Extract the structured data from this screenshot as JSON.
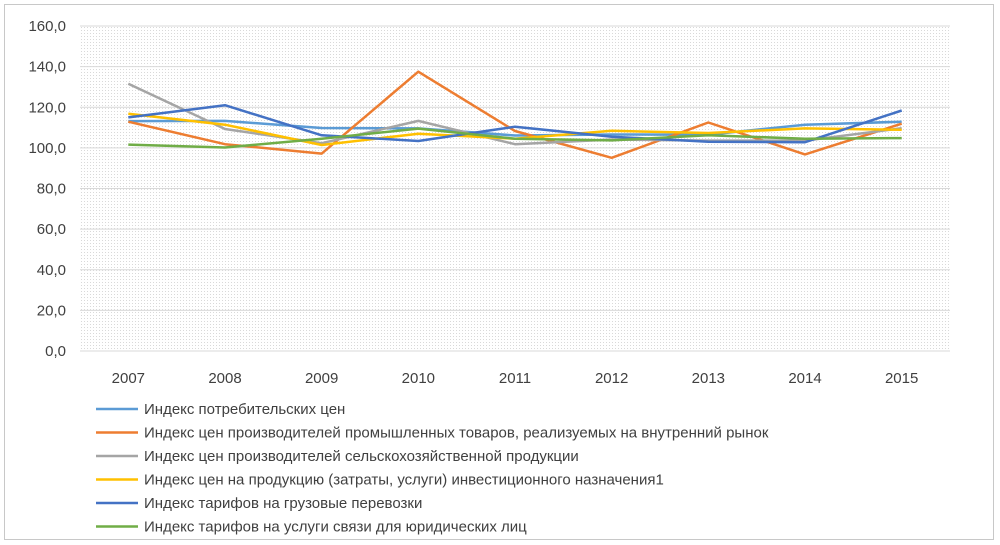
{
  "chart_data": {
    "type": "line",
    "title": "",
    "xlabel": "",
    "ylabel": "",
    "ylim": [
      0,
      160
    ],
    "y_ticks": [
      "0,0",
      "20,0",
      "40,0",
      "60,0",
      "80,0",
      "100,0",
      "120,0",
      "140,0",
      "160,0"
    ],
    "y_tick_values": [
      0,
      20,
      40,
      60,
      80,
      100,
      120,
      140,
      160
    ],
    "categories": [
      "2007",
      "2008",
      "2009",
      "2010",
      "2011",
      "2012",
      "2013",
      "2014",
      "2015"
    ],
    "grid": true,
    "legend_position": "bottom",
    "series": [
      {
        "name": "Индекс потребительских цен",
        "color": "#5b9bd5",
        "values": [
          113.2,
          113.3,
          109.8,
          109.6,
          106.1,
          106.6,
          106.5,
          111.4,
          112.9
        ]
      },
      {
        "name": "Индекс цен производителей промышленных товаров, реализуемых на внутренний рынок",
        "color": "#ed7d31",
        "values": [
          112.9,
          101.8,
          97.2,
          137.5,
          108.3,
          95.1,
          112.5,
          96.8,
          111.9
        ]
      },
      {
        "name": "Индекс цен производителей сельскохозяйственной продукции",
        "color": "#a5a5a5",
        "values": [
          131.6,
          109.3,
          102.3,
          113.3,
          101.8,
          104.1,
          103.6,
          103.6,
          109.7
        ]
      },
      {
        "name": "Индекс цен на продукцию (затраты, услуги) инвестиционного назначения1",
        "color": "#ffc000",
        "values": [
          116.8,
          111.4,
          101.4,
          107.0,
          104.5,
          108.4,
          107.3,
          109.6,
          108.9
        ]
      },
      {
        "name": "Индекс тарифов на грузовые перевозки",
        "color": "#4472c4",
        "values": [
          115.0,
          121.0,
          106.2,
          103.4,
          110.4,
          105.5,
          103.0,
          102.8,
          118.4
        ]
      },
      {
        "name": "Индекс тарифов на услуги связи для юридических лиц",
        "color": "#70ad47",
        "values": [
          101.6,
          100.2,
          104.5,
          109.5,
          104.5,
          103.7,
          106.2,
          104.5,
          104.8
        ]
      }
    ]
  }
}
